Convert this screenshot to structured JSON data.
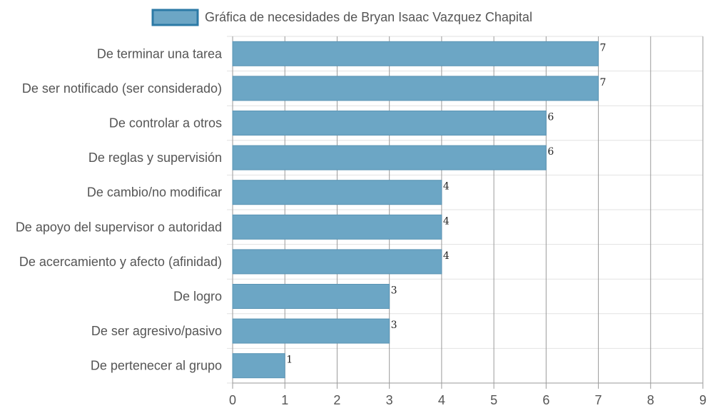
{
  "chart_data": {
    "type": "bar",
    "orientation": "horizontal",
    "categories": [
      "De terminar una tarea",
      "De ser notificado (ser considerado)",
      "De controlar a otros",
      "De reglas y supervisión",
      "De cambio/no modificar",
      "De apoyo del supervisor o autoridad",
      "De acercamiento y afecto (afinidad)",
      "De logro",
      "De ser agresivo/pasivo",
      "De pertenecer al grupo"
    ],
    "series": [
      {
        "name": "Gráfica de necesidades de Bryan Isaac Vazquez Chapital",
        "values": [
          7,
          7,
          6,
          6,
          4,
          4,
          4,
          3,
          3,
          1
        ]
      }
    ],
    "xlim": [
      0,
      9
    ],
    "xticks": [
      "0",
      "1",
      "2",
      "3",
      "4",
      "5",
      "6",
      "7",
      "8",
      "9"
    ],
    "grid": true,
    "legend_position": "top-center",
    "colors": {
      "bar_fill": "#6ca6c5",
      "bar_stroke": "#5a94b4",
      "legend_fill": "#6ca6c5",
      "legend_stroke": "#2c7aa6",
      "grid_vertical": "#9a9a9a",
      "grid_horizontal": "#e2e2e2"
    }
  }
}
